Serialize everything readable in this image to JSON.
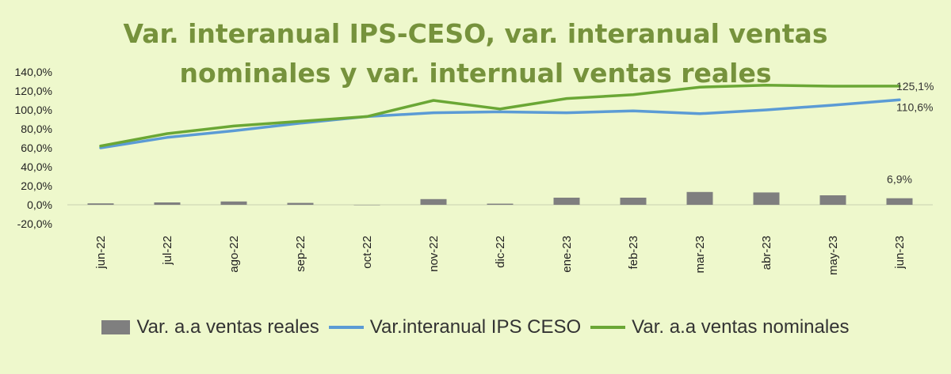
{
  "chart_data": {
    "type": "bar+line",
    "title_line1": "Var. interanual IPS-CESO, var. interanual ventas",
    "title_line2": "nominales y var. internual ventas reales",
    "categories": [
      "jun-22",
      "jul-22",
      "ago-22",
      "sep-22",
      "oct-22",
      "nov-22",
      "dic-22",
      "ene-23",
      "feb-23",
      "mar-23",
      "abr-23",
      "may-23",
      "jun-23"
    ],
    "y_ticks": [
      "140,0%",
      "120,0%",
      "100,0%",
      "80,0%",
      "60,0%",
      "40,0%",
      "20,0%",
      "0,0%",
      "-20,0%"
    ],
    "ylim": [
      -20,
      140
    ],
    "series": [
      {
        "name": "Var. a.a ventas reales",
        "kind": "bar",
        "color": "#7f7f7f",
        "values": [
          1.5,
          2.5,
          3.5,
          2,
          0,
          6,
          1.2,
          7.5,
          7.5,
          13.5,
          13,
          10,
          6.9
        ]
      },
      {
        "name": "Var.interanual IPS CESO",
        "kind": "line",
        "color": "#5b9bd5",
        "values": [
          60,
          71,
          78,
          86,
          93,
          97,
          98,
          97,
          99,
          96,
          100,
          105,
          110.6
        ]
      },
      {
        "name": "Var. a.a ventas nominales",
        "kind": "line",
        "color": "#6aa735",
        "values": [
          62,
          75,
          83,
          88,
          93,
          110,
          101,
          112,
          116,
          124,
          126,
          125,
          125.1
        ]
      }
    ],
    "data_labels": {
      "bar_last": "6,9%",
      "blue_last": "110,6%",
      "green_last": "125,1%"
    },
    "legend_position": "bottom"
  }
}
